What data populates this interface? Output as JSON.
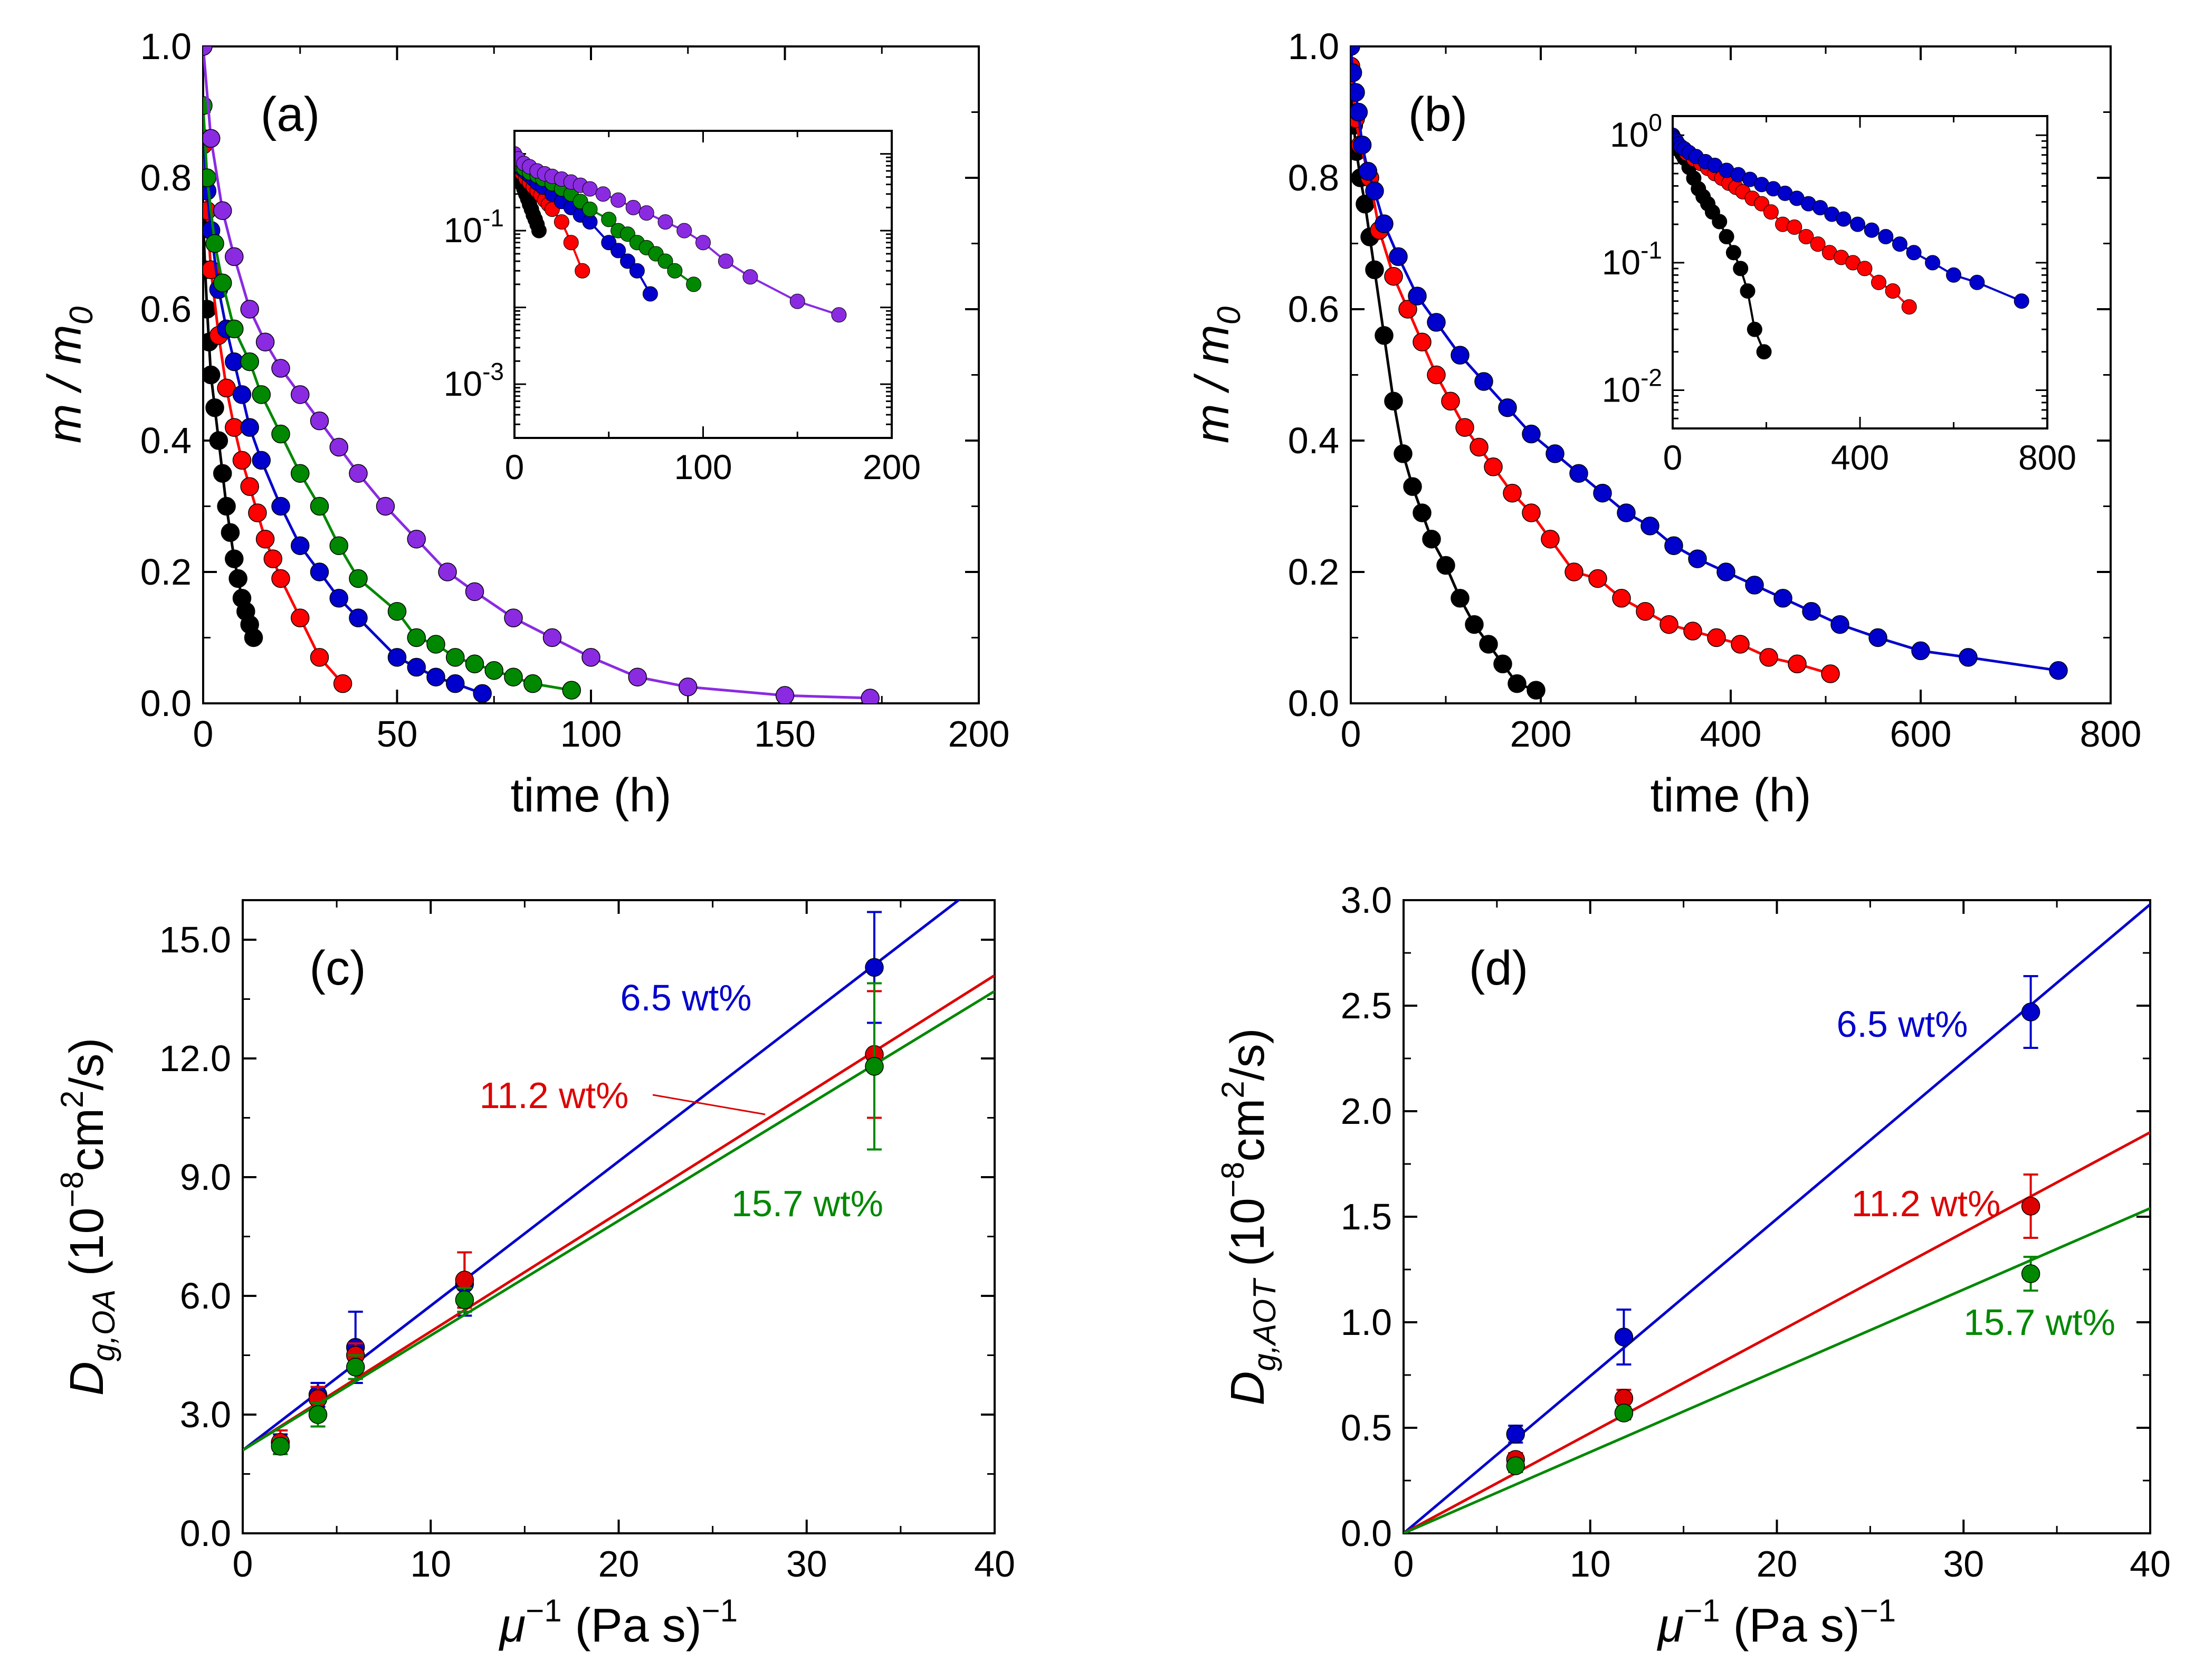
{
  "chart_data": [
    {
      "panel": "a",
      "type": "scatter",
      "panel_label": "(a)",
      "xlabel": "time (h)",
      "ylabel": {
        "base": "m / m",
        "sub": "0"
      },
      "xlim": [
        0,
        200
      ],
      "ylim": [
        0,
        1
      ],
      "xticks": [
        0,
        50,
        100,
        150,
        200
      ],
      "yticks": [
        0.0,
        0.2,
        0.4,
        0.6,
        0.8,
        1.0
      ],
      "xtick_labels": [
        "0",
        "50",
        "100",
        "150",
        "200"
      ],
      "ytick_labels": [
        "0.0",
        "0.2",
        "0.4",
        "0.6",
        "0.8",
        "1.0"
      ],
      "series": [
        {
          "name": "black",
          "color": "#000000",
          "x": [
            0,
            0.5,
            1,
            1.5,
            2,
            3,
            4,
            5,
            6,
            7,
            8,
            9,
            10,
            11,
            12,
            13
          ],
          "y": [
            0.74,
            0.66,
            0.6,
            0.55,
            0.5,
            0.45,
            0.4,
            0.35,
            0.3,
            0.26,
            0.22,
            0.19,
            0.16,
            0.14,
            0.12,
            0.1
          ]
        },
        {
          "name": "red",
          "color": "#ff0000",
          "x": [
            0,
            1,
            2,
            4,
            6,
            8,
            10,
            12,
            14,
            16,
            18,
            20,
            25,
            30,
            36
          ],
          "y": [
            0.85,
            0.75,
            0.66,
            0.56,
            0.48,
            0.42,
            0.37,
            0.33,
            0.29,
            0.25,
            0.22,
            0.19,
            0.13,
            0.07,
            0.03
          ]
        },
        {
          "name": "blue",
          "color": "#0000cc",
          "x": [
            0,
            1,
            2,
            4,
            6,
            8,
            10,
            12,
            15,
            20,
            25,
            30,
            35,
            40,
            50,
            55,
            60,
            65,
            72
          ],
          "y": [
            0.86,
            0.78,
            0.72,
            0.63,
            0.57,
            0.52,
            0.47,
            0.42,
            0.37,
            0.3,
            0.24,
            0.2,
            0.16,
            0.13,
            0.07,
            0.055,
            0.04,
            0.03,
            0.015
          ]
        },
        {
          "name": "green",
          "color": "#008800",
          "x": [
            0,
            1,
            3,
            5,
            8,
            12,
            15,
            20,
            25,
            30,
            35,
            40,
            50,
            55,
            60,
            65,
            70,
            75,
            80,
            85,
            95
          ],
          "y": [
            0.91,
            0.8,
            0.7,
            0.64,
            0.57,
            0.52,
            0.47,
            0.41,
            0.35,
            0.3,
            0.24,
            0.19,
            0.14,
            0.1,
            0.09,
            0.07,
            0.06,
            0.05,
            0.04,
            0.03,
            0.02
          ]
        },
        {
          "name": "purple",
          "color": "#8a2be2",
          "x": [
            0,
            2,
            5,
            8,
            12,
            16,
            20,
            25,
            30,
            35,
            40,
            47,
            55,
            63,
            70,
            80,
            90,
            100,
            112,
            125,
            150,
            172
          ],
          "y": [
            1.0,
            0.86,
            0.75,
            0.68,
            0.6,
            0.55,
            0.51,
            0.47,
            0.43,
            0.39,
            0.35,
            0.3,
            0.25,
            0.2,
            0.17,
            0.13,
            0.1,
            0.07,
            0.04,
            0.025,
            0.012,
            0.008
          ]
        }
      ],
      "inset": {
        "type": "line",
        "scale": "log-y",
        "xlim": [
          0,
          200
        ],
        "ylim_log10": [
          -3.7,
          0.3
        ],
        "xtick_labels": [
          "0",
          "100",
          "200"
        ],
        "ytick_labels": [
          {
            "base": "10",
            "exp": "-1"
          },
          {
            "base": "10",
            "exp": "-3"
          }
        ]
      }
    },
    {
      "panel": "b",
      "type": "scatter",
      "panel_label": "(b)",
      "xlabel": "time (h)",
      "ylabel": {
        "base": "m / m",
        "sub": "0"
      },
      "xlim": [
        0,
        800
      ],
      "ylim": [
        0,
        1
      ],
      "xticks": [
        0,
        200,
        400,
        600,
        800
      ],
      "yticks": [
        0.0,
        0.2,
        0.4,
        0.6,
        0.8,
        1.0
      ],
      "xtick_labels": [
        "0",
        "200",
        "400",
        "600",
        "800"
      ],
      "ytick_labels": [
        "0.0",
        "0.2",
        "0.4",
        "0.6",
        "0.8",
        "1.0"
      ],
      "series": [
        {
          "name": "black",
          "color": "#000000",
          "x": [
            0,
            3,
            6,
            10,
            15,
            20,
            25,
            35,
            45,
            55,
            65,
            75,
            85,
            100,
            115,
            130,
            145,
            160,
            175,
            195
          ],
          "y": [
            0.93,
            0.88,
            0.84,
            0.8,
            0.76,
            0.71,
            0.66,
            0.56,
            0.46,
            0.38,
            0.33,
            0.29,
            0.25,
            0.21,
            0.16,
            0.12,
            0.09,
            0.06,
            0.03,
            0.02
          ]
        },
        {
          "name": "red",
          "color": "#ff0000",
          "x": [
            0,
            5,
            10,
            20,
            30,
            45,
            60,
            75,
            90,
            105,
            120,
            135,
            150,
            170,
            190,
            210,
            235,
            260,
            285,
            310,
            335,
            360,
            385,
            410,
            440,
            470,
            505
          ],
          "y": [
            0.97,
            0.89,
            0.85,
            0.8,
            0.72,
            0.65,
            0.6,
            0.55,
            0.5,
            0.46,
            0.42,
            0.39,
            0.36,
            0.32,
            0.29,
            0.25,
            0.2,
            0.19,
            0.16,
            0.14,
            0.12,
            0.11,
            0.1,
            0.09,
            0.07,
            0.06,
            0.045
          ]
        },
        {
          "name": "blue",
          "color": "#0000cc",
          "x": [
            0,
            2,
            5,
            8,
            12,
            18,
            25,
            35,
            50,
            70,
            90,
            115,
            140,
            165,
            190,
            215,
            240,
            265,
            290,
            315,
            340,
            365,
            395,
            425,
            455,
            485,
            515,
            555,
            600,
            650,
            745
          ],
          "y": [
            1.0,
            0.96,
            0.93,
            0.9,
            0.85,
            0.81,
            0.78,
            0.73,
            0.68,
            0.62,
            0.58,
            0.53,
            0.49,
            0.45,
            0.41,
            0.38,
            0.35,
            0.32,
            0.29,
            0.27,
            0.24,
            0.22,
            0.2,
            0.18,
            0.16,
            0.14,
            0.12,
            0.1,
            0.08,
            0.07,
            0.05
          ]
        }
      ],
      "inset": {
        "type": "line",
        "scale": "log-y",
        "xlim": [
          0,
          800
        ],
        "ylim_log10": [
          -2.3,
          0.15
        ],
        "xtick_labels": [
          "0",
          "400",
          "800"
        ],
        "ytick_labels": [
          {
            "base": "10",
            "exp": "0"
          },
          {
            "base": "10",
            "exp": "-1"
          },
          {
            "base": "10",
            "exp": "-2"
          }
        ]
      }
    },
    {
      "panel": "c",
      "type": "scatter",
      "panel_label": "(c)",
      "xlabel": {
        "sym": "μ",
        "exp": "−1",
        "unit": " (Pa s)",
        "unit_exp": "−1"
      },
      "ylabel": {
        "sym": "D",
        "sub": "g,OA",
        "unit": " (10",
        "exp": "−8",
        "rest": "cm",
        "rest_exp": "2",
        "tail": "/s)"
      },
      "xlim": [
        0,
        40
      ],
      "ylim": [
        0,
        16
      ],
      "xticks": [
        0,
        10,
        20,
        30,
        40
      ],
      "yticks": [
        0.0,
        3.0,
        6.0,
        9.0,
        12.0,
        15.0
      ],
      "xtick_labels": [
        "0",
        "10",
        "20",
        "30",
        "40"
      ],
      "ytick_labels": [
        "0.0",
        "3.0",
        "6.0",
        "9.0",
        "12.0",
        "15.0"
      ],
      "series": [
        {
          "name": "6.5 wt%",
          "color": "#0000cc",
          "x": [
            2,
            4,
            6,
            11.8,
            33.6
          ],
          "y": [
            2.3,
            3.5,
            4.7,
            6.3,
            14.3
          ],
          "err": [
            0.2,
            0.3,
            0.9,
            0.8,
            1.4
          ],
          "fit": [
            2.1,
            0.365
          ]
        },
        {
          "name": "11.2 wt%",
          "color": "#dd0000",
          "x": [
            2,
            4,
            6,
            11.8,
            33.6
          ],
          "y": [
            2.3,
            3.4,
            4.5,
            6.4,
            12.1
          ],
          "err": [
            0.3,
            0.3,
            0.3,
            0.7,
            1.6
          ],
          "fit": [
            2.1,
            0.3
          ]
        },
        {
          "name": "15.7 wt%",
          "color": "#008800",
          "x": [
            2,
            4,
            6,
            11.8,
            33.6
          ],
          "y": [
            2.2,
            3.0,
            4.2,
            5.9,
            11.8
          ],
          "err": [
            0.2,
            0.3,
            0.3,
            0.3,
            2.1
          ],
          "fit": [
            2.1,
            0.29
          ]
        }
      ],
      "annotations": [
        "6.5 wt%",
        "11.2 wt%",
        "15.7 wt%"
      ]
    },
    {
      "panel": "d",
      "type": "scatter",
      "panel_label": "(d)",
      "xlabel": {
        "sym": "μ",
        "exp": "−1",
        "unit": " (Pa s)",
        "unit_exp": "−1"
      },
      "ylabel": {
        "sym": "D",
        "sub": "g,AOT",
        "unit": " (10",
        "exp": "−8",
        "rest": "cm",
        "rest_exp": "2",
        "tail": "/s)"
      },
      "xlim": [
        0,
        40
      ],
      "ylim": [
        0,
        3
      ],
      "xticks": [
        0,
        10,
        20,
        30,
        40
      ],
      "yticks": [
        0.0,
        0.5,
        1.0,
        1.5,
        2.0,
        2.5,
        3.0
      ],
      "xtick_labels": [
        "0",
        "10",
        "20",
        "30",
        "40"
      ],
      "ytick_labels": [
        "0.0",
        "0.5",
        "1.0",
        "1.5",
        "2.0",
        "2.5",
        "3.0"
      ],
      "series": [
        {
          "name": "6.5 wt%",
          "color": "#0000cc",
          "x": [
            6,
            11.8,
            33.6
          ],
          "y": [
            0.47,
            0.93,
            2.47
          ],
          "err": [
            0.04,
            0.13,
            0.17
          ],
          "fit": [
            0,
            0.0745
          ]
        },
        {
          "name": "11.2 wt%",
          "color": "#dd0000",
          "x": [
            6,
            11.8,
            33.6
          ],
          "y": [
            0.35,
            0.64,
            1.55
          ],
          "err": [
            0.03,
            0.04,
            0.15
          ],
          "fit": [
            0,
            0.0475
          ]
        },
        {
          "name": "15.7 wt%",
          "color": "#008800",
          "x": [
            6,
            11.8,
            33.6
          ],
          "y": [
            0.32,
            0.57,
            1.23
          ],
          "err": [
            0.03,
            0.03,
            0.08
          ],
          "fit": [
            0,
            0.0385
          ]
        }
      ],
      "annotations": [
        "6.5 wt%",
        "11.2 wt%",
        "15.7 wt%"
      ]
    }
  ]
}
